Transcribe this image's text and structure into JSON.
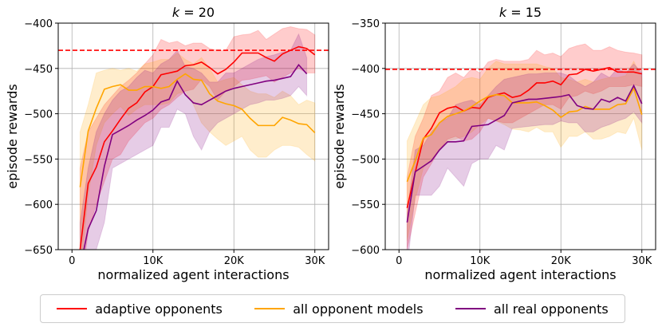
{
  "legend": [
    {
      "label": "adaptive opponents",
      "color": "#ff0000"
    },
    {
      "label": "all opponent models",
      "color": "#ffa500"
    },
    {
      "label": "all real opponents",
      "color": "#800080"
    }
  ],
  "chart_data": [
    {
      "type": "line",
      "title": "k = 20",
      "title_var": "k",
      "title_rest": " = 20",
      "xlabel": "normalized agent interactions",
      "ylabel": "episode rewards",
      "xlim": [
        -1700,
        31700
      ],
      "ylim": [
        -650,
        -400
      ],
      "xticks": [
        0,
        10000,
        20000,
        30000
      ],
      "xtick_labels": [
        "0",
        "10K",
        "20K",
        "30K"
      ],
      "yticks": [
        -650,
        -600,
        -550,
        -500,
        -450,
        -400
      ],
      "ytick_labels": [
        "−650",
        "−600",
        "−550",
        "−500",
        "−450",
        "−400"
      ],
      "grid": true,
      "reference_line": {
        "y": -430,
        "color": "#ff0000",
        "style": "dashed"
      },
      "series": [
        {
          "name": "adaptive opponents",
          "color": "#ff0000",
          "x_start": 1000,
          "x_step": 1000,
          "values": [
            -650,
            -577,
            -559,
            -531,
            -519,
            -506,
            -494,
            -488,
            -476,
            -470,
            -457,
            -455,
            -453,
            -447,
            -446,
            -443,
            -449,
            -456,
            -451,
            -443,
            -433,
            -433,
            -433,
            -438,
            -442,
            -434,
            -430,
            -426,
            -428,
            -435
          ],
          "upper": [
            -560,
            -520,
            -505,
            -490,
            -480,
            -470,
            -463,
            -455,
            -445,
            -435,
            -418,
            -422,
            -420,
            -425,
            -422,
            -422,
            -428,
            -430,
            -430,
            -415,
            -413,
            -412,
            -408,
            -418,
            -412,
            -406,
            -404,
            -406,
            -407,
            -413
          ],
          "lower": [
            -700,
            -630,
            -600,
            -575,
            -550,
            -545,
            -530,
            -520,
            -510,
            -505,
            -495,
            -490,
            -482,
            -475,
            -473,
            -462,
            -470,
            -485,
            -475,
            -470,
            -463,
            -462,
            -460,
            -458,
            -465,
            -460,
            -455,
            -450,
            -455,
            -455
          ]
        },
        {
          "name": "all opponent models",
          "color": "#ffa500",
          "x_start": 1000,
          "x_step": 1000,
          "values": [
            -581,
            -519,
            -494,
            -473,
            -470,
            -468,
            -474,
            -474,
            -470,
            -470,
            -472,
            -470,
            -462,
            -456,
            -462,
            -463,
            -478,
            -486,
            -489,
            -491,
            -495,
            -505,
            -513,
            -513,
            -513,
            -504,
            -507,
            -511,
            -512,
            -521
          ],
          "upper": [
            -520,
            -490,
            -455,
            -452,
            -450,
            -452,
            -450,
            -453,
            -445,
            -443,
            -440,
            -440,
            -433,
            -440,
            -445,
            -438,
            -450,
            -465,
            -462,
            -460,
            -468,
            -475,
            -478,
            -478,
            -482,
            -475,
            -480,
            -490,
            -485,
            -488
          ],
          "lower": [
            -680,
            -590,
            -535,
            -510,
            -500,
            -492,
            -502,
            -495,
            -490,
            -490,
            -490,
            -488,
            -478,
            -475,
            -490,
            -510,
            -520,
            -528,
            -535,
            -530,
            -525,
            -540,
            -548,
            -548,
            -540,
            -535,
            -535,
            -537,
            -545,
            -552
          ]
        },
        {
          "name": "all real opponents",
          "color": "#800080",
          "x_start": 1000,
          "x_step": 1000,
          "values": [
            -670,
            -627,
            -607,
            -558,
            -523,
            -518,
            -513,
            -507,
            -502,
            -496,
            -487,
            -484,
            -464,
            -479,
            -488,
            -490,
            -485,
            -480,
            -475,
            -472,
            -470,
            -468,
            -466,
            -464,
            -463,
            -461,
            -459,
            -446,
            -456
          ],
          "upper": [
            -620,
            -560,
            -520,
            -500,
            -485,
            -475,
            -470,
            -460,
            -452,
            -455,
            -445,
            -440,
            -430,
            -448,
            -450,
            -455,
            -465,
            -465,
            -455,
            -455,
            -450,
            -445,
            -440,
            -437,
            -435,
            -432,
            -430,
            -412,
            -438
          ],
          "lower": [
            -700,
            -700,
            -650,
            -620,
            -560,
            -555,
            -550,
            -545,
            -540,
            -535,
            -515,
            -515,
            -495,
            -500,
            -525,
            -540,
            -520,
            -510,
            -505,
            -500,
            -495,
            -490,
            -488,
            -485,
            -485,
            -483,
            -480,
            -470,
            -480
          ]
        }
      ]
    },
    {
      "type": "line",
      "title": "k = 15",
      "title_var": "k",
      "title_rest": " = 15",
      "xlabel": "normalized agent interactions",
      "ylabel": "episode rewards",
      "xlim": [
        -1700,
        31700
      ],
      "ylim": [
        -600,
        -350
      ],
      "xticks": [
        0,
        10000,
        20000,
        30000
      ],
      "xtick_labels": [
        "0",
        "10K",
        "20K",
        "30K"
      ],
      "yticks": [
        -600,
        -550,
        -500,
        -450,
        -400,
        -350
      ],
      "ytick_labels": [
        "−600",
        "−550",
        "−500",
        "−450",
        "−400",
        "−350"
      ],
      "grid": true,
      "reference_line": {
        "y": -401,
        "color": "#ff0000",
        "style": "dashed"
      },
      "series": [
        {
          "name": "adaptive opponents",
          "color": "#ff0000",
          "x_start": 1000,
          "x_step": 1000,
          "values": [
            -554,
            -515,
            -478,
            -466,
            -449,
            -444,
            -442,
            -447,
            -443,
            -444,
            -432,
            -429,
            -427,
            -432,
            -430,
            -424,
            -416,
            -416,
            -414,
            -418,
            -407,
            -406,
            -401,
            -403,
            -401,
            -399,
            -404,
            -404,
            -404,
            -406
          ],
          "upper": [
            -520,
            -475,
            -455,
            -430,
            -425,
            -410,
            -405,
            -410,
            -400,
            -405,
            -393,
            -390,
            -392,
            -392,
            -392,
            -390,
            -380,
            -385,
            -383,
            -387,
            -378,
            -375,
            -373,
            -380,
            -380,
            -376,
            -380,
            -382,
            -383,
            -385
          ],
          "lower": [
            -600,
            -560,
            -520,
            -505,
            -490,
            -478,
            -475,
            -480,
            -478,
            -470,
            -455,
            -458,
            -460,
            -460,
            -455,
            -450,
            -445,
            -440,
            -440,
            -445,
            -432,
            -430,
            -425,
            -428,
            -425,
            -420,
            -420,
            -420,
            -418,
            -420
          ]
        },
        {
          "name": "all opponent models",
          "color": "#ffa500",
          "x_start": 1000,
          "x_step": 1000,
          "values": [
            -525,
            -502,
            -477,
            -473,
            -460,
            -453,
            -450,
            -447,
            -442,
            -436,
            -431,
            -429,
            -430,
            -438,
            -438,
            -438,
            -437,
            -441,
            -446,
            -454,
            -448,
            -447,
            -442,
            -445,
            -445,
            -445,
            -440,
            -439,
            -422,
            -451
          ],
          "upper": [
            -480,
            -460,
            -440,
            -432,
            -430,
            -425,
            -420,
            -412,
            -410,
            -412,
            -400,
            -392,
            -395,
            -395,
            -395,
            -395,
            -395,
            -398,
            -400,
            -410,
            -412,
            -415,
            -412,
            -415,
            -412,
            -410,
            -410,
            -408,
            -392,
            -410
          ],
          "lower": [
            -590,
            -545,
            -510,
            -500,
            -490,
            -480,
            -478,
            -475,
            -470,
            -462,
            -455,
            -458,
            -462,
            -467,
            -468,
            -470,
            -465,
            -470,
            -470,
            -487,
            -475,
            -475,
            -470,
            -478,
            -478,
            -475,
            -470,
            -472,
            -455,
            -490
          ]
        },
        {
          "name": "all real opponents",
          "color": "#800080",
          "x_start": 1000,
          "x_step": 1000,
          "values": [
            -570,
            -514,
            -508,
            -502,
            -490,
            -481,
            -481,
            -480,
            -464,
            -463,
            -462,
            -457,
            -452,
            -438,
            -436,
            -434,
            -434,
            -433,
            -432,
            -431,
            -429,
            -441,
            -444,
            -445,
            -434,
            -437,
            -432,
            -436,
            -419,
            -439
          ],
          "upper": [
            -560,
            -490,
            -485,
            -470,
            -460,
            -455,
            -440,
            -437,
            -435,
            -440,
            -430,
            -420,
            -412,
            -410,
            -408,
            -406,
            -406,
            -405,
            -405,
            -405,
            -408,
            -415,
            -420,
            -415,
            -405,
            -410,
            -400,
            -405,
            -395,
            -405
          ],
          "lower": [
            -620,
            -540,
            -540,
            -540,
            -530,
            -510,
            -520,
            -530,
            -505,
            -500,
            -500,
            -485,
            -490,
            -466,
            -465,
            -464,
            -463,
            -462,
            -462,
            -458,
            -460,
            -460,
            -470,
            -470,
            -465,
            -462,
            -458,
            -455,
            -448,
            -460
          ]
        }
      ]
    }
  ]
}
